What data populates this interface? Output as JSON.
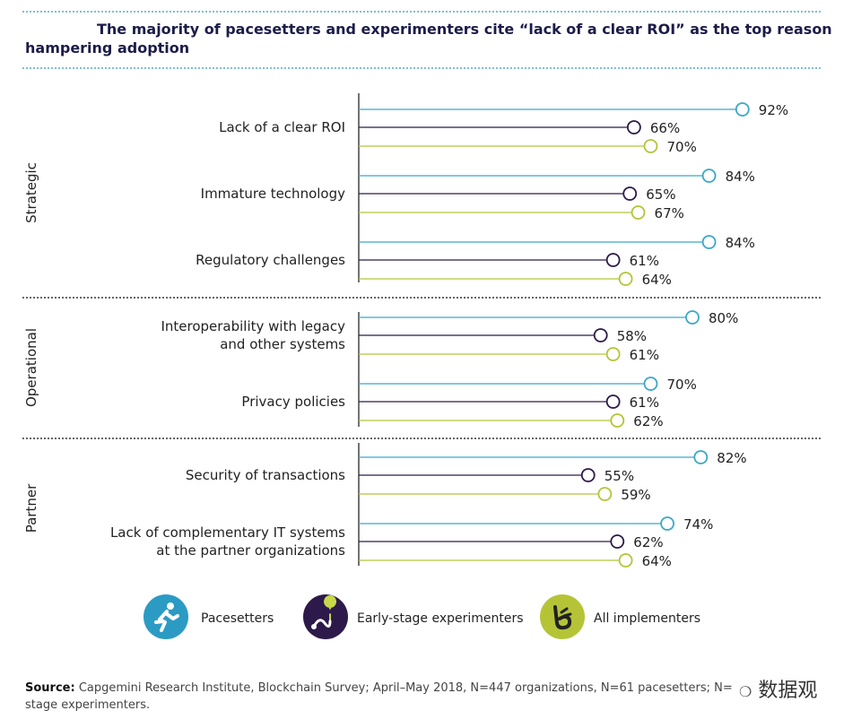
{
  "chart_data": {
    "type": "dot",
    "title": "The majority of pacesetters and experimenters cite “lack of a clear ROI” as the top reason hampering adoption",
    "xlabel": "",
    "ylabel": "",
    "xlim": [
      0,
      100
    ],
    "value_suffix": "%",
    "groups": [
      "Strategic",
      "Operational",
      "Partner"
    ],
    "categories": [
      {
        "label": "Lack of a clear ROI",
        "group": "Strategic"
      },
      {
        "label": "Immature technology",
        "group": "Strategic"
      },
      {
        "label": "Regulatory challenges",
        "group": "Strategic"
      },
      {
        "label": "Interoperability with legacy\nand other systems",
        "group": "Operational"
      },
      {
        "label": "Privacy policies",
        "group": "Operational"
      },
      {
        "label": "Security of transactions",
        "group": "Partner"
      },
      {
        "label": "Lack of complementary IT systems\nat the partner organizations",
        "group": "Partner"
      }
    ],
    "series": [
      {
        "name": "Pacesetters",
        "color": "#3aa8c8",
        "values": [
          92,
          84,
          84,
          80,
          70,
          82,
          74
        ]
      },
      {
        "name": "Early-stage experimenters",
        "color": "#2e1a4a",
        "values": [
          66,
          65,
          61,
          58,
          61,
          55,
          62
        ]
      },
      {
        "name": "All implementers",
        "color": "#b5c437",
        "values": [
          70,
          67,
          64,
          61,
          62,
          59,
          64
        ]
      }
    ],
    "legend": "bottom"
  },
  "source": {
    "label": "Source:",
    "text": " Capgemini Research Institute, Blockchain Survey; April–May 2018, N=447 organizations, N=61 pacesetters; N=",
    "text2": "stage experimenters."
  },
  "watermark": "数据观"
}
